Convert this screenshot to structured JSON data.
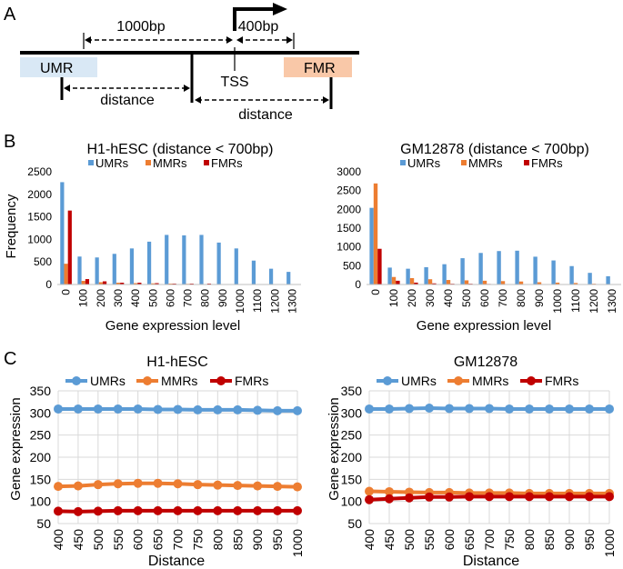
{
  "panel_labels": {
    "a": "A",
    "b": "B",
    "c": "C"
  },
  "diagram": {
    "umr_label": "UMR",
    "fmr_label": "FMR",
    "tss_label": "TSS",
    "dist_1000": "1000bp",
    "dist_400": "400bp",
    "distance_left": "distance",
    "distance_right": "distance",
    "colors": {
      "umr_box": "#d9e8f5",
      "fmr_box": "#f9c8a8"
    }
  },
  "legend": {
    "umr": "UMRs",
    "mmr": "MMRs",
    "fmr": "FMRs"
  },
  "colors": {
    "umr": "#5b9bd5",
    "mmr": "#ed7d31",
    "fmr": "#c00000",
    "grid": "#d9d9d9",
    "axis": "#000000"
  },
  "chart_data": [
    {
      "id": "b1",
      "type": "bar",
      "title": "H1-hESC (distance < 700bp)",
      "xlabel": "Gene expression level",
      "ylabel": "Frequency",
      "categories": [
        "0",
        "100",
        "200",
        "300",
        "400",
        "500",
        "600",
        "700",
        "800",
        "900",
        "1000",
        "1100",
        "1200",
        "1300"
      ],
      "ylim": [
        0,
        2500
      ],
      "yticks": [
        0,
        500,
        1000,
        1500,
        2000,
        2500
      ],
      "series": [
        {
          "name": "UMRs",
          "values": [
            2270,
            620,
            600,
            680,
            800,
            950,
            1100,
            1090,
            1100,
            930,
            800,
            530,
            350,
            280
          ]
        },
        {
          "name": "MMRs",
          "values": [
            460,
            80,
            50,
            40,
            30,
            25,
            20,
            15,
            10,
            10,
            5,
            5,
            0,
            0
          ]
        },
        {
          "name": "FMRs",
          "values": [
            1640,
            120,
            70,
            40,
            40,
            30,
            20,
            20,
            20,
            10,
            5,
            5,
            0,
            0
          ]
        }
      ]
    },
    {
      "id": "b2",
      "type": "bar",
      "title": "GM12878 (distance < 700bp)",
      "xlabel": "Gene expression level",
      "ylabel": "",
      "categories": [
        "0",
        "100",
        "200",
        "300",
        "400",
        "500",
        "600",
        "700",
        "800",
        "900",
        "1000",
        "1100",
        "1200",
        "1300"
      ],
      "ylim": [
        0,
        3000
      ],
      "yticks": [
        0,
        500,
        1000,
        1500,
        2000,
        2500,
        3000
      ],
      "series": [
        {
          "name": "UMRs",
          "values": [
            2040,
            450,
            420,
            460,
            540,
            700,
            840,
            890,
            900,
            740,
            640,
            490,
            310,
            220
          ]
        },
        {
          "name": "MMRs",
          "values": [
            2690,
            200,
            170,
            140,
            120,
            110,
            100,
            90,
            80,
            60,
            50,
            40,
            20,
            10
          ]
        },
        {
          "name": "FMRs",
          "values": [
            950,
            100,
            50,
            30,
            20,
            20,
            15,
            10,
            10,
            5,
            5,
            5,
            0,
            0
          ]
        }
      ]
    },
    {
      "id": "c1",
      "type": "line",
      "title": "H1-hESC",
      "xlabel": "Distance",
      "ylabel": "Gene expression",
      "x": [
        "400",
        "450",
        "500",
        "550",
        "600",
        "650",
        "700",
        "750",
        "800",
        "850",
        "900",
        "950",
        "1000"
      ],
      "ylim": [
        50,
        350
      ],
      "yticks": [
        50,
        100,
        150,
        200,
        250,
        300,
        350
      ],
      "grid": true,
      "series": [
        {
          "name": "UMRs",
          "values": [
            309,
            309,
            309,
            309,
            309,
            308,
            308,
            307,
            307,
            307,
            306,
            305,
            305
          ]
        },
        {
          "name": "MMRs",
          "values": [
            134,
            135,
            138,
            140,
            141,
            141,
            140,
            138,
            137,
            136,
            135,
            134,
            133
          ]
        },
        {
          "name": "FMRs",
          "values": [
            78,
            77,
            78,
            79,
            79,
            79,
            79,
            79,
            79,
            79,
            79,
            79,
            79
          ]
        }
      ]
    },
    {
      "id": "c2",
      "type": "line",
      "title": "GM12878",
      "xlabel": "Distance",
      "ylabel": "Gene expression",
      "x": [
        "400",
        "450",
        "500",
        "550",
        "600",
        "650",
        "700",
        "750",
        "800",
        "850",
        "900",
        "950",
        "1000"
      ],
      "ylim": [
        50,
        350
      ],
      "yticks": [
        50,
        100,
        150,
        200,
        250,
        300,
        350
      ],
      "grid": true,
      "series": [
        {
          "name": "UMRs",
          "values": [
            309,
            309,
            310,
            311,
            310,
            310,
            310,
            309,
            309,
            309,
            309,
            309,
            309
          ]
        },
        {
          "name": "MMRs",
          "values": [
            123,
            122,
            121,
            120,
            120,
            119,
            119,
            119,
            118,
            118,
            118,
            118,
            118
          ]
        },
        {
          "name": "FMRs",
          "values": [
            104,
            106,
            108,
            110,
            110,
            111,
            111,
            111,
            111,
            111,
            111,
            111,
            111
          ]
        }
      ]
    }
  ]
}
